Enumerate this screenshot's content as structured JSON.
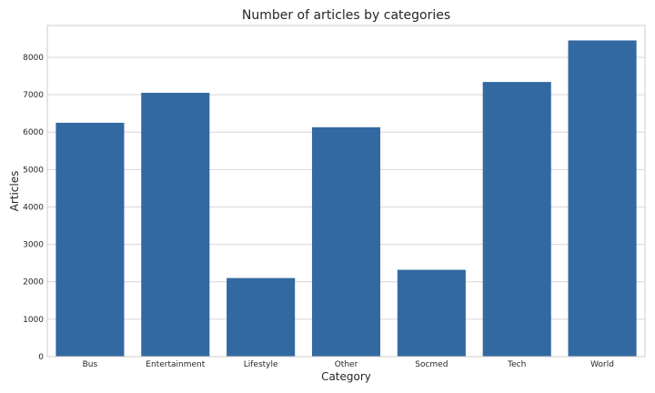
{
  "chart_data": {
    "type": "bar",
    "title": "Number of articles by categories",
    "xlabel": "Category",
    "ylabel": "Articles",
    "categories": [
      "Bus",
      "Entertainment",
      "Lifestyle",
      "Other",
      "Socmed",
      "Tech",
      "World"
    ],
    "values": [
      6250,
      7050,
      2100,
      6130,
      2320,
      7340,
      8450
    ],
    "ylim": [
      0,
      8850
    ],
    "yticks": [
      0,
      1000,
      2000,
      3000,
      4000,
      5000,
      6000,
      7000,
      8000
    ],
    "grid": true,
    "legend": "none",
    "bar_color": "#3369a1",
    "grid_color": "#d6d6d6",
    "frame_color": "#cccccc"
  }
}
